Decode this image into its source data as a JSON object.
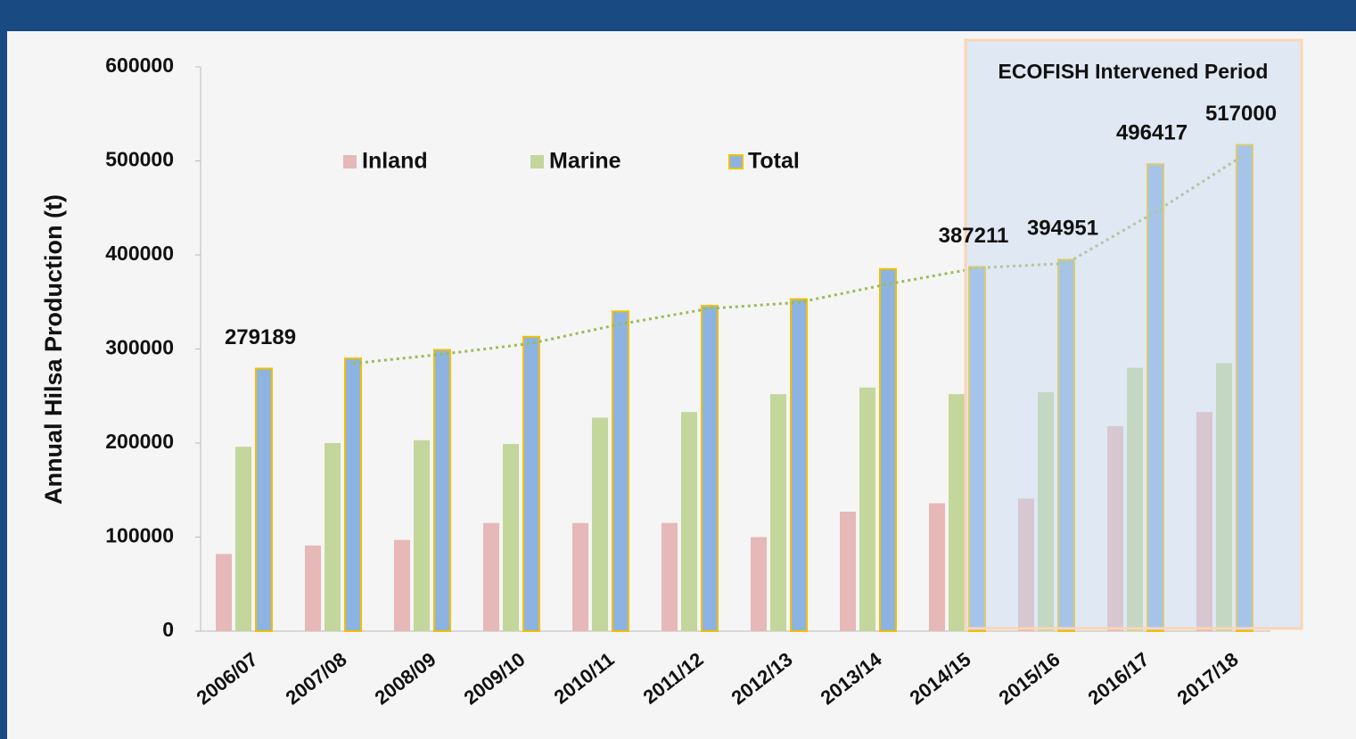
{
  "chart_data": {
    "type": "bar",
    "y_axis_label": "Annual Hilsa Production (t)",
    "annotation": "ECOFISH Intervened Period",
    "categories": [
      "2006/07",
      "2007/08",
      "2008/09",
      "2009/10",
      "2010/11",
      "2011/12",
      "2012/13",
      "2013/14",
      "2014/15",
      "2015/16",
      "2016/17",
      "2017/18"
    ],
    "series": [
      {
        "name": "Inland",
        "color": "#e6b8b7",
        "values": [
          82000,
          91000,
          97000,
          115000,
          115000,
          115000,
          100000,
          127000,
          136000,
          141000,
          218000,
          233000
        ]
      },
      {
        "name": "Marine",
        "color": "#c3d69b",
        "values": [
          196000,
          200000,
          203000,
          199000,
          227000,
          233000,
          252000,
          259000,
          252000,
          254000,
          280000,
          285000
        ]
      },
      {
        "name": "Total",
        "color": "#8db3e2",
        "edge": "#f0c000",
        "values": [
          279189,
          290000,
          299000,
          313000,
          340000,
          346000,
          353000,
          385000,
          387211,
          394951,
          496417,
          517000
        ],
        "value_labels": [
          279189,
          null,
          null,
          null,
          null,
          null,
          null,
          null,
          387211,
          394951,
          496417,
          517000
        ]
      }
    ],
    "trendline": {
      "color": "#9bbb59",
      "values": [
        null,
        284595,
        294500,
        306000,
        326500,
        343000,
        349500,
        369000,
        386106,
        391081,
        445684,
        506709
      ]
    },
    "ylim": [
      0,
      600000
    ],
    "yticks": [
      0,
      100000,
      200000,
      300000,
      400000,
      500000,
      600000
    ],
    "grid": false
  }
}
